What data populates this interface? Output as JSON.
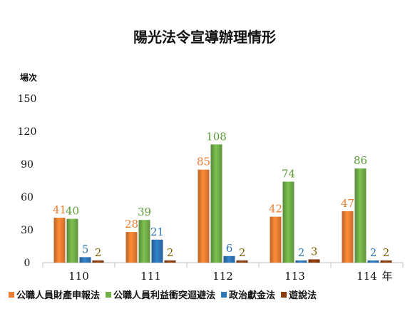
{
  "chart_data": {
    "type": "bar",
    "title": "陽光法令宣導辦理情形",
    "ylabel": "場次",
    "xlabel_unit": "年",
    "categories": [
      "110",
      "111",
      "112",
      "113",
      "114"
    ],
    "yticks": [
      "150",
      "120",
      "90",
      "60",
      "30",
      "0"
    ],
    "ylim": [
      0,
      150
    ],
    "grid": false,
    "legend_position": "bottom",
    "series": [
      {
        "name": "公職人員財產申報法",
        "values": [
          41,
          28,
          85,
          42,
          47
        ],
        "color": "#ED7D31",
        "label_color": "#ED7D31"
      },
      {
        "name": "公職人員利益衝突迴避法",
        "values": [
          40,
          39,
          108,
          74,
          86
        ],
        "color": "#70AD47",
        "label_color": "#5B9B36"
      },
      {
        "name": "政治獻金法",
        "values": [
          5,
          21,
          6,
          2,
          2
        ],
        "color": "#2E75B6",
        "label_color": "#2E75B6"
      },
      {
        "name": "遊說法",
        "values": [
          2,
          2,
          2,
          3,
          2
        ],
        "color": "#8B3D0E",
        "label_color": "#7F6000"
      }
    ]
  }
}
